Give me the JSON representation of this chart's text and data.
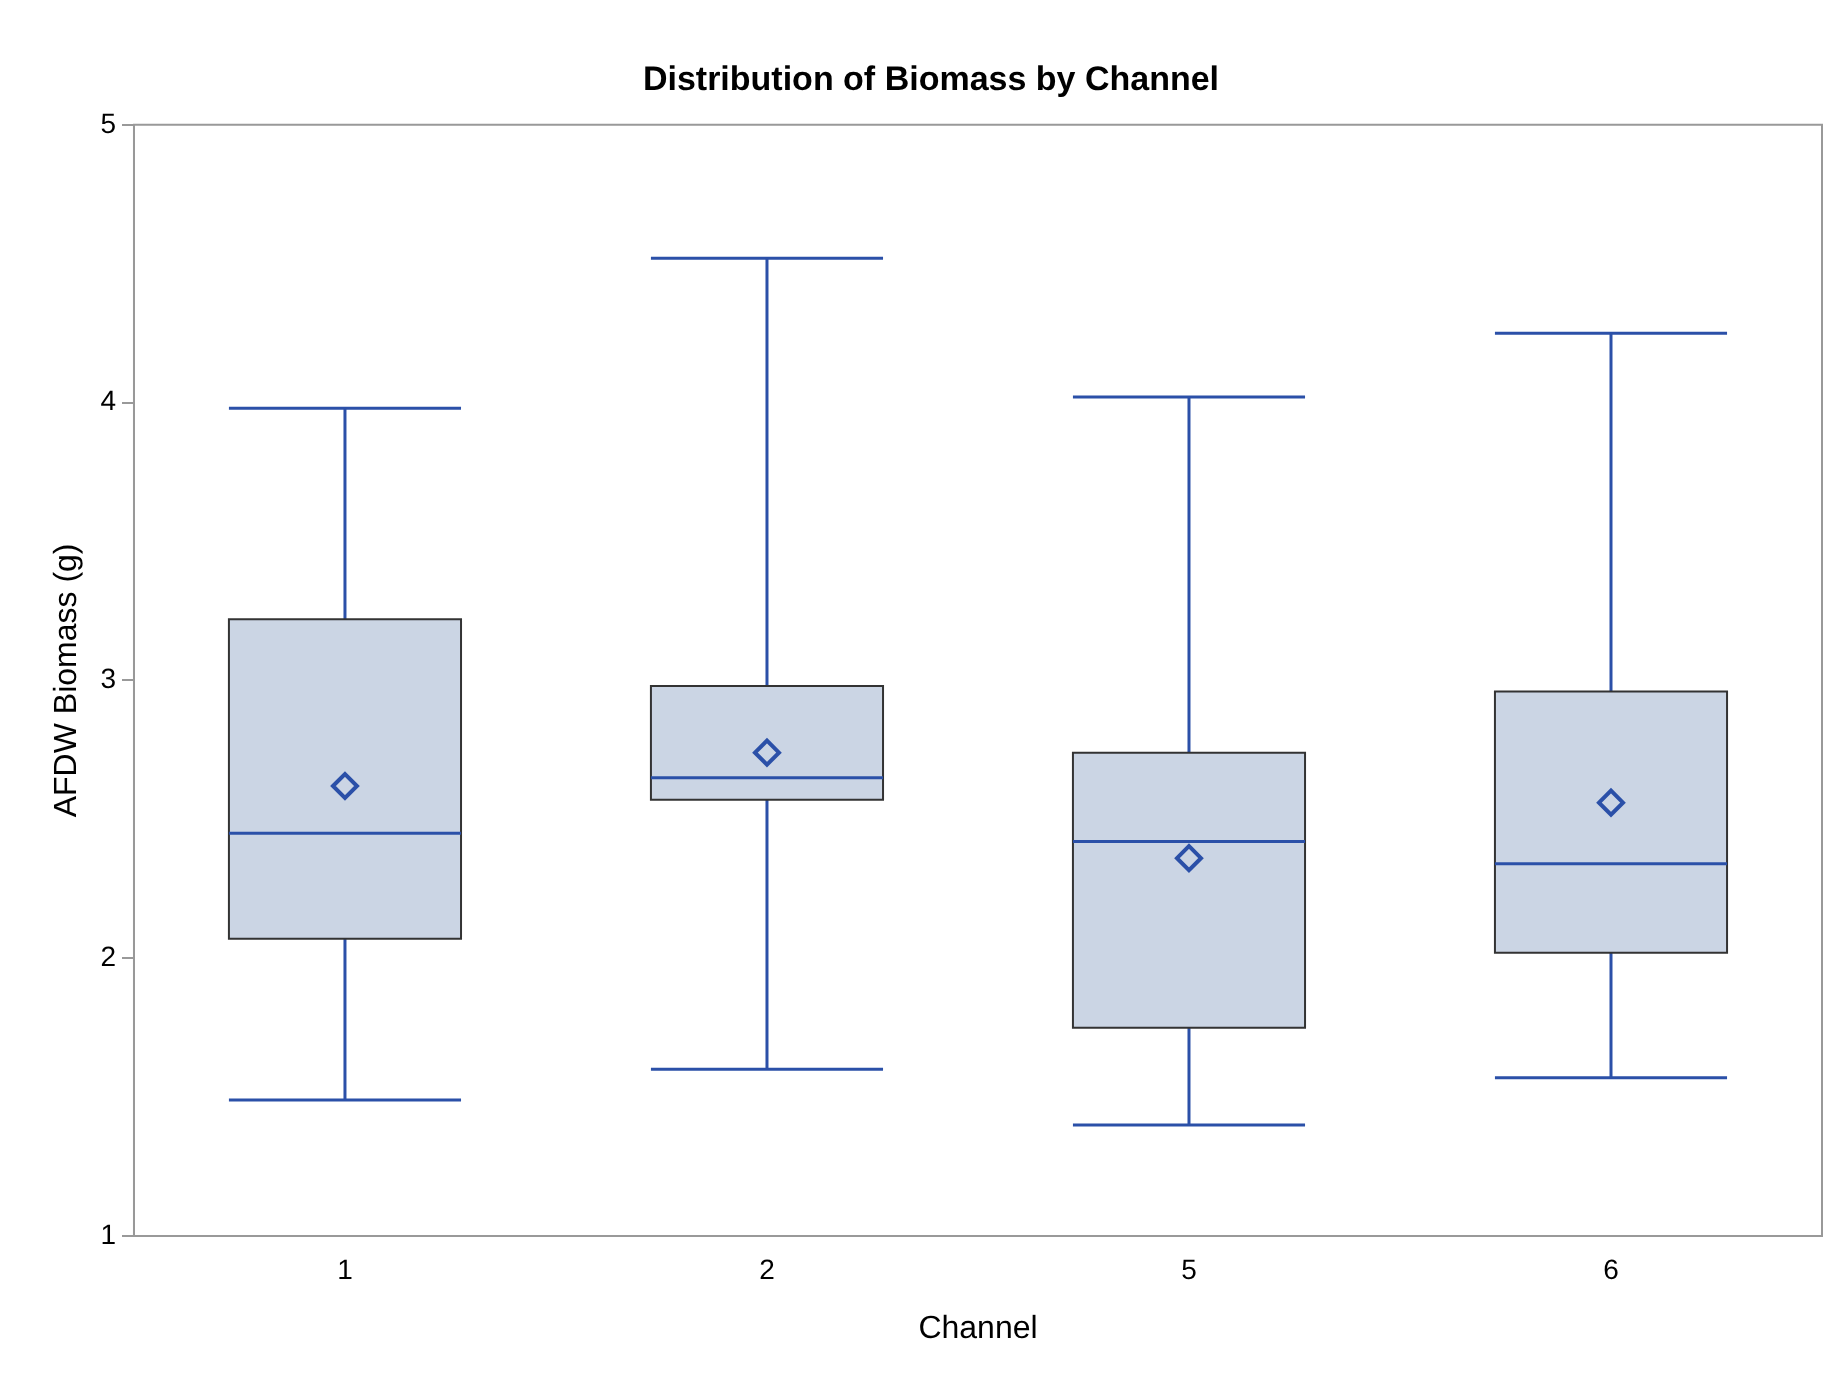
{
  "chart_data": {
    "type": "box",
    "title": "Distribution of Biomass by Channel",
    "xlabel": "Channel",
    "ylabel": "AFDW Biomass (g)",
    "categories": [
      "1",
      "2",
      "5",
      "6"
    ],
    "color": "#cbd5e4",
    "boxes": [
      {
        "low": 1.49,
        "q1": 2.07,
        "median": 2.45,
        "q3": 3.22,
        "high": 3.98,
        "mean": 2.62
      },
      {
        "low": 1.6,
        "q1": 2.57,
        "median": 2.65,
        "q3": 2.98,
        "high": 4.52,
        "mean": 2.74
      },
      {
        "low": 1.4,
        "q1": 1.75,
        "median": 2.42,
        "q3": 2.74,
        "high": 4.02,
        "mean": 2.36
      },
      {
        "low": 1.57,
        "q1": 2.02,
        "median": 2.34,
        "q3": 2.96,
        "high": 4.25,
        "mean": 2.56
      }
    ],
    "ylim": [
      1,
      5
    ],
    "yticks": [
      1,
      2,
      3,
      4,
      5
    ],
    "grid": false,
    "legend": false,
    "marker": "diamond"
  }
}
